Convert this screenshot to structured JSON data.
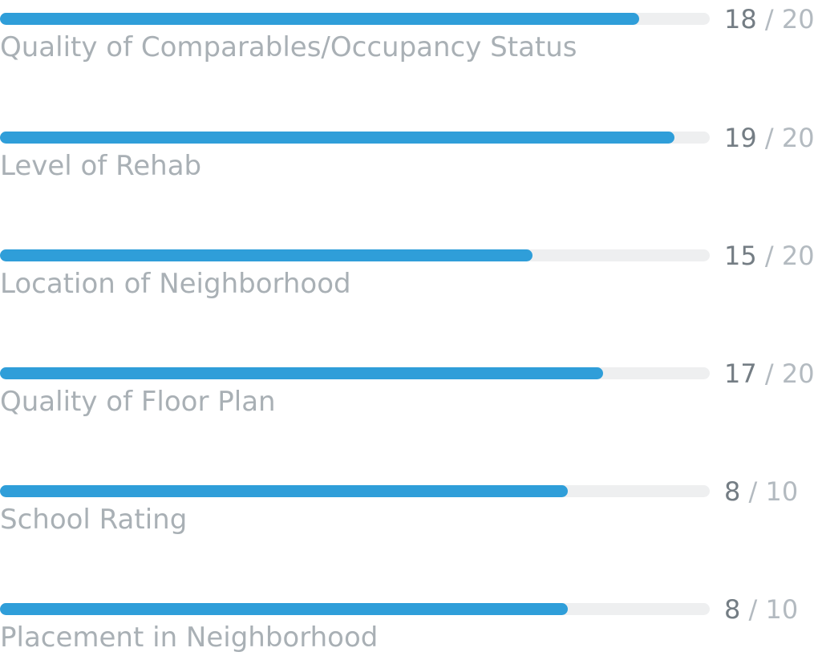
{
  "colors": {
    "bar_fill": "#2f9ed9",
    "bar_track": "#eeeff0",
    "label_text": "#a9b0b5",
    "score_text": "#747d84",
    "score_max_text": "#b3bac0"
  },
  "separator": "/",
  "scores": [
    {
      "label": "Quality of Comparables/Occupancy Status",
      "value": "18",
      "max": "20",
      "progress": 0.9
    },
    {
      "label": "Level of Rehab",
      "value": "19",
      "max": "20",
      "progress": 0.95
    },
    {
      "label": "Location of Neighborhood",
      "value": "15",
      "max": "20",
      "progress": 0.75
    },
    {
      "label": "Quality of Floor Plan",
      "value": "17",
      "max": "20",
      "progress": 0.85
    },
    {
      "label": "School Rating",
      "value": "8",
      "max": "10",
      "progress": 0.8
    },
    {
      "label": "Placement in Neighborhood",
      "value": "8",
      "max": "10",
      "progress": 0.8
    }
  ]
}
